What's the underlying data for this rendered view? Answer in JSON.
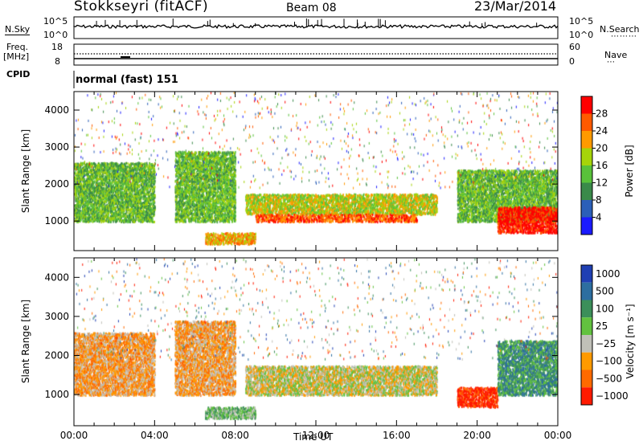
{
  "header": {
    "station": "Stokkseyri (fitACF)",
    "beam": "Beam 08",
    "date": "23/Mar/2014"
  },
  "top_panels": {
    "nsky_label": "N.Sky",
    "nsky_ticks": [
      "10^5",
      "10^0"
    ],
    "nsearch_label": "N.Search",
    "nsearch_ticks": [
      "10^5",
      "10^0"
    ],
    "freq_label": "Freq.",
    "freq_unit": "[MHz]",
    "freq_ticks": [
      "18",
      "8"
    ],
    "nave_label": "Nave",
    "nave_ticks": [
      "60",
      "0"
    ],
    "cpid_label": "CPID",
    "cpid_value": "normal (fast) 151"
  },
  "colors": {
    "power": [
      "#1a1aff",
      "#2b5fb8",
      "#3a8a4a",
      "#59c23a",
      "#a6d40a",
      "#ff9a00",
      "#ff5a00",
      "#ff0000"
    ],
    "velocity": [
      "#1f3fb3",
      "#2d6ea0",
      "#3c8f5a",
      "#62c23f",
      "#c0c0b8",
      "#ff9a00",
      "#ff6a00",
      "#ff1a00"
    ]
  },
  "chart_data": [
    {
      "type": "heatmap",
      "name": "Power",
      "xlabel": "",
      "ylabel": "Slant Range [km]",
      "xlim": [
        "00:00",
        "24:00"
      ],
      "ylim": [
        200,
        4500
      ],
      "yticks": [
        "1000",
        "2000",
        "3000",
        "4000"
      ],
      "colorbar_label": "Power [dB]",
      "colorbar_ticks": [
        "4",
        "8",
        "12",
        "16",
        "20",
        "24",
        "28"
      ],
      "features": [
        {
          "t": [
            0,
            4
          ],
          "r": [
            1000,
            2600
          ],
          "level": 3
        },
        {
          "t": [
            5,
            8
          ],
          "r": [
            1000,
            2900
          ],
          "level": 3
        },
        {
          "t": [
            6.5,
            9
          ],
          "r": [
            400,
            700
          ],
          "level": 5
        },
        {
          "t": [
            8.5,
            18
          ],
          "r": [
            1200,
            1750
          ],
          "level": 4
        },
        {
          "t": [
            9,
            17
          ],
          "r": [
            1000,
            1200
          ],
          "level": 6
        },
        {
          "t": [
            19,
            24
          ],
          "r": [
            1000,
            2400
          ],
          "level": 3
        },
        {
          "t": [
            21,
            24
          ],
          "r": [
            700,
            1400
          ],
          "level": 7
        }
      ]
    },
    {
      "type": "heatmap",
      "name": "Velocity",
      "xlabel": "Time UT",
      "ylabel": "Slant Range [km]",
      "xlim": [
        "00:00",
        "24:00"
      ],
      "ylim": [
        200,
        4500
      ],
      "xticks": [
        "00:00",
        "04:00",
        "08:00",
        "12:00",
        "16:00",
        "20:00",
        "00:00"
      ],
      "yticks": [
        "1000",
        "2000",
        "3000",
        "4000"
      ],
      "colorbar_label": "Velocity [m s⁻¹]",
      "colorbar_ticks": [
        "1000",
        "500",
        "100",
        "25",
        "−25",
        "−100",
        "−500",
        "−1000"
      ],
      "features": [
        {
          "t": [
            0,
            4
          ],
          "r": [
            1000,
            2600
          ],
          "level": 5
        },
        {
          "t": [
            5,
            8
          ],
          "r": [
            1000,
            2900
          ],
          "level": 5
        },
        {
          "t": [
            6.5,
            9
          ],
          "r": [
            400,
            700
          ],
          "level": 3
        },
        {
          "t": [
            8.5,
            18
          ],
          "r": [
            1000,
            1750
          ],
          "level": 4
        },
        {
          "t": [
            19,
            21
          ],
          "r": [
            700,
            1200
          ],
          "level": 7
        },
        {
          "t": [
            21,
            24
          ],
          "r": [
            1000,
            2400
          ],
          "level": 2
        }
      ]
    }
  ]
}
